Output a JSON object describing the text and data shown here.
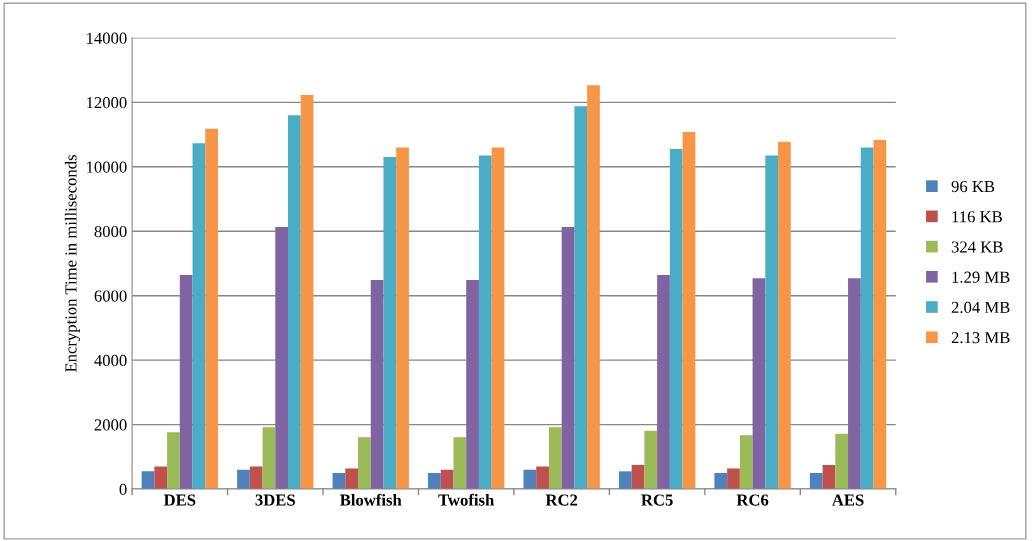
{
  "chart_data": {
    "type": "bar",
    "ylabel": "Encryption Time in milliseconds",
    "categories": [
      "DES",
      "3DES",
      "Blowfish",
      "Twofish",
      "RC2",
      "RC5",
      "RC6",
      "AES"
    ],
    "series": [
      {
        "name": "96 KB",
        "color": "#4f81bd",
        "values": [
          550,
          600,
          500,
          500,
          600,
          550,
          500,
          500
        ]
      },
      {
        "name": "116 KB",
        "color": "#c0504d",
        "values": [
          700,
          700,
          640,
          600,
          700,
          750,
          640,
          750
        ]
      },
      {
        "name": "324 KB",
        "color": "#9bbb59",
        "values": [
          1760,
          1920,
          1610,
          1610,
          1920,
          1810,
          1670,
          1720
        ]
      },
      {
        "name": "1.29 MB",
        "color": "#8064a2",
        "values": [
          6640,
          8130,
          6490,
          6490,
          8130,
          6640,
          6540,
          6540
        ]
      },
      {
        "name": "2.04 MB",
        "color": "#4bacc6",
        "values": [
          10730,
          11600,
          10300,
          10350,
          11880,
          10550,
          10350,
          10600
        ]
      },
      {
        "name": "2.13 MB",
        "color": "#f79646",
        "values": [
          11180,
          12230,
          10600,
          10600,
          12530,
          11080,
          10780,
          10830
        ]
      }
    ],
    "ylim": [
      0,
      14000
    ],
    "yticks": [
      0,
      2000,
      4000,
      6000,
      8000,
      10000,
      12000,
      14000
    ],
    "grid": "y",
    "legend": "right"
  }
}
